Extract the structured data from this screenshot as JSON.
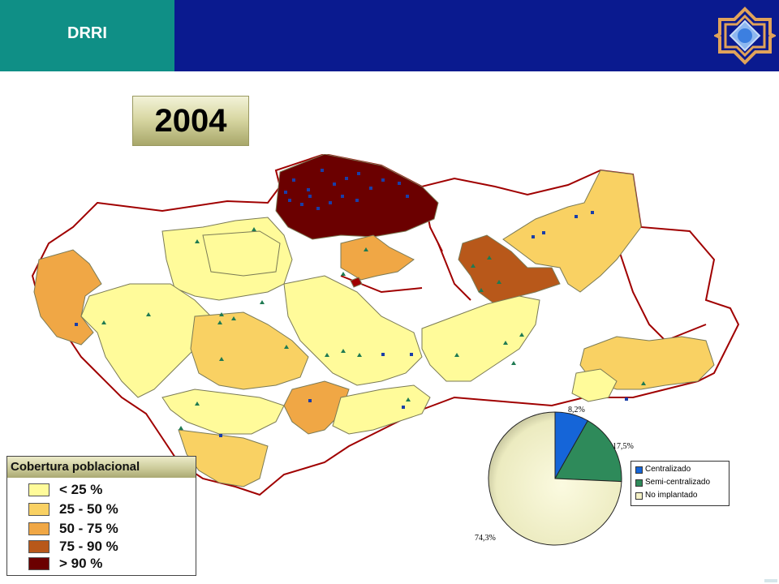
{
  "header": {
    "brand": "DRRI",
    "logo_icon": "octagram-star-logo-icon"
  },
  "year": "2004",
  "legend": {
    "title": "Cobertura poblacional",
    "items": [
      {
        "label": "< 25 %",
        "color": "#fffb9a"
      },
      {
        "label": "25 - 50 %",
        "color": "#f9d163"
      },
      {
        "label": "50 - 75 %",
        "color": "#f0a745"
      },
      {
        "label": "75 - 90 %",
        "color": "#b8581a"
      },
      {
        "label": "> 90 %",
        "color": "#6b0000"
      }
    ]
  },
  "chart_data": {
    "type": "pie",
    "slices": [
      {
        "name": "Centralizado",
        "value": 8.2,
        "label": "8,2%",
        "color": "#1565d8"
      },
      {
        "name": "Semi-centralizado",
        "value": 17.5,
        "label": "17,5%",
        "color": "#2e8a5a"
      },
      {
        "name": "No implantado",
        "value": 74.3,
        "label": "74,3%",
        "color": "#f4f1c6"
      }
    ],
    "legend_placement": "right"
  },
  "map": {
    "marker_colors": {
      "blue": "#1a3ea8",
      "green": "#1f7a52"
    }
  }
}
